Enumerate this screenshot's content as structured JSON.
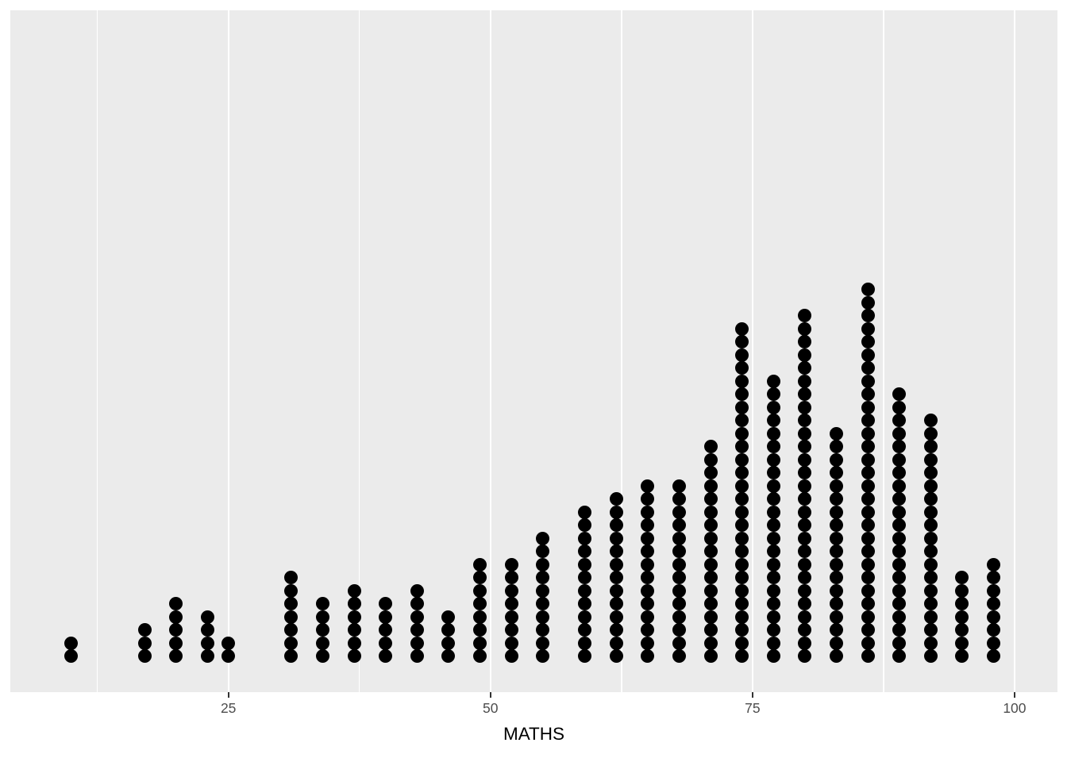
{
  "figure": {
    "background_color": "#FFFFFF",
    "panel_background_color": "#EBEBEB",
    "gridline_color": "#FFFFFF",
    "dot_color": "#000000",
    "axis_tick_color": "#333333",
    "tick_label_color": "#4D4D4D",
    "axis_title_color": "#000000"
  },
  "chart_data": {
    "type": "bar",
    "subtype": "dotplot",
    "title": "",
    "xlabel": "MATHS",
    "ylabel": "",
    "legend": false,
    "grid": true,
    "xlim": [
      4.2,
      104.1
    ],
    "x_tick_labels": [
      "25",
      "50",
      "75",
      "100"
    ],
    "x_tick_values": [
      25,
      50,
      75,
      100
    ],
    "x_minor_tick_values": [
      12.5,
      37.5,
      62.5,
      87.5
    ],
    "x": [
      10,
      17,
      20,
      23,
      25,
      31,
      34,
      37,
      40,
      43,
      46,
      49,
      52,
      55,
      59,
      62,
      65,
      68,
      71,
      74,
      77,
      80,
      83,
      86,
      89,
      92,
      95,
      98
    ],
    "counts": [
      2,
      3,
      5,
      4,
      2,
      7,
      5,
      6,
      5,
      6,
      4,
      8,
      8,
      10,
      12,
      13,
      14,
      14,
      17,
      26,
      22,
      27,
      18,
      29,
      21,
      19,
      7,
      8
    ],
    "total_dots": 322
  }
}
